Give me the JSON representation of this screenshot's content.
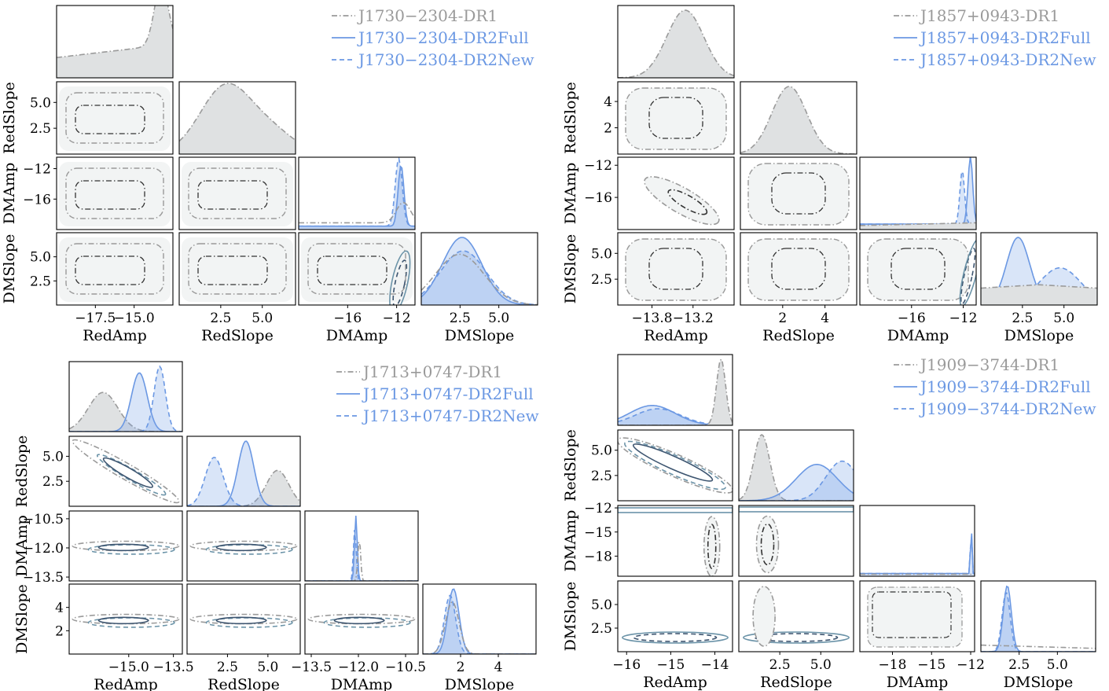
{
  "figure": {
    "panels": [
      {
        "pulsar": "J1730-2304",
        "legend": [
          "J1730−2304-DR1",
          "J1730−2304-DR2Full",
          "J1730−2304-DR2New"
        ],
        "params": [
          "RedAmp",
          "RedSlope",
          "DMAmp",
          "DMSlope"
        ],
        "row_labels": [
          "RedSlope",
          "DMAmp",
          "DMSlope"
        ],
        "ranges": [
          [
            -20,
            -12.5
          ],
          [
            0,
            7
          ],
          [
            -20,
            -10.5
          ],
          [
            0,
            7.5
          ]
        ],
        "y_ticks": [
          [
            2.5,
            5.0
          ],
          [
            -16,
            -12
          ],
          [
            2.5,
            5.0
          ]
        ],
        "y_tick_labels": [
          [
            "2.5",
            "5.0"
          ],
          [
            "−16",
            "−12"
          ],
          [
            "2.5",
            "5.0"
          ]
        ],
        "x_ticks": [
          [
            -17.5,
            -15.0
          ],
          [
            2.5,
            5.0
          ],
          [
            -16,
            -12
          ],
          [
            2.5,
            5.0
          ]
        ],
        "x_tick_labels": [
          [
            "−17.5",
            "−15.0"
          ],
          [
            "2.5",
            "5.0"
          ],
          [
            "−16",
            "−12"
          ],
          [
            "2.5",
            "5.0"
          ]
        ]
      },
      {
        "pulsar": "J1857+0943",
        "legend": [
          "J1857+0943-DR1",
          "J1857+0943-DR2Full",
          "J1857+0943-DR2New"
        ],
        "params": [
          "RedAmp",
          "RedSlope",
          "DMAmp",
          "DMSlope"
        ],
        "row_labels": [
          "RedSlope",
          "DMAmp",
          "DMSlope"
        ],
        "ranges": [
          [
            -14.3,
            -12.6
          ],
          [
            0,
            5.5
          ],
          [
            -20,
            -11
          ],
          [
            0,
            7
          ]
        ],
        "y_ticks": [
          [
            2,
            4
          ],
          [
            -16,
            -12
          ],
          [
            2.5,
            5.0
          ]
        ],
        "y_tick_labels": [
          [
            "2",
            "4"
          ],
          [
            "−16",
            "−12"
          ],
          [
            "2.5",
            "5.0"
          ]
        ],
        "x_ticks": [
          [
            -13.8,
            -13.2
          ],
          [
            2,
            4
          ],
          [
            -16,
            -12
          ],
          [
            2.5,
            5.0
          ]
        ],
        "x_tick_labels": [
          [
            "−13.8",
            "−13.2"
          ],
          [
            "2",
            "4"
          ],
          [
            "−16",
            "−12"
          ],
          [
            "2.5",
            "5.0"
          ]
        ]
      },
      {
        "pulsar": "J1713+0747",
        "legend": [
          "J1713+0747-DR1",
          "J1713+0747-DR2Full",
          "J1713+0747-DR2New"
        ],
        "params": [
          "RedAmp",
          "RedSlope",
          "DMAmp",
          "DMSlope"
        ],
        "row_labels": [
          "RedSlope",
          "DMAmp",
          "DMSlope"
        ],
        "ranges": [
          [
            -17,
            -13.2
          ],
          [
            0,
            7
          ],
          [
            -13.7,
            -10.1
          ],
          [
            0,
            6
          ]
        ],
        "y_ticks": [
          [
            2.5,
            5.0
          ],
          [
            -13.5,
            -12.0,
            -10.5
          ],
          [
            2,
            4
          ]
        ],
        "y_tick_labels": [
          [
            "2.5",
            "5.0"
          ],
          [
            "−13.5",
            "−12.0",
            "−10.5"
          ],
          [
            "2",
            "4"
          ]
        ],
        "x_ticks": [
          [
            -15.0,
            -13.5
          ],
          [
            2.5,
            5.0
          ],
          [
            -13.5,
            -12.0,
            -10.5
          ],
          [
            2,
            4
          ]
        ],
        "x_tick_labels": [
          [
            "−15.0",
            "−13.5"
          ],
          [
            "2.5",
            "5.0"
          ],
          [
            "−13.5",
            "−12.0",
            "−10.5"
          ],
          [
            "2",
            "4"
          ]
        ]
      },
      {
        "pulsar": "J1909-3744",
        "legend": [
          "J1909−3744-DR1",
          "J1909−3744-DR2Full",
          "J1909−3744-DR2New"
        ],
        "params": [
          "RedAmp",
          "RedSlope",
          "DMAmp",
          "DMSlope"
        ],
        "row_labels": [
          "RedSlope",
          "DMAmp",
          "DMSlope"
        ],
        "ranges": [
          [
            -16.2,
            -13.6
          ],
          [
            0,
            7
          ],
          [
            -20.5,
            -11.7
          ],
          [
            0,
            7.5
          ]
        ],
        "y_ticks": [
          [
            2.5,
            5.0
          ],
          [
            -18,
            -15,
            -12
          ],
          [
            2.5,
            5.0
          ]
        ],
        "y_tick_labels": [
          [
            "2.5",
            "5.0"
          ],
          [
            "−18",
            "−15",
            "−12"
          ],
          [
            "2.5",
            "5.0"
          ]
        ],
        "x_ticks": [
          [
            -16,
            -15,
            -14
          ],
          [
            2.5,
            5.0
          ],
          [
            -18,
            -15,
            -12
          ],
          [
            2.5,
            5.0
          ]
        ],
        "x_tick_labels": [
          [
            "−16",
            "−15",
            "−14"
          ],
          [
            "2.5",
            "5.0"
          ],
          [
            "−18",
            "−15",
            "−12"
          ],
          [
            "2.5",
            "5.0"
          ]
        ]
      }
    ]
  },
  "chart_data": [
    {
      "type": "corner",
      "title": "J1730-2304",
      "parameters": [
        "RedAmp",
        "RedSlope",
        "DMAmp",
        "DMSlope"
      ],
      "series": [
        {
          "name": "J1730−2304-DR1",
          "color": "#9e9e9e",
          "linestyle": "dashdot",
          "peaks": {
            "RedAmp": -13.5,
            "RedSlope": 2.5,
            "DMAmp": -11.8,
            "DMSlope": 2.4
          }
        },
        {
          "name": "J1730−2304-DR2Full",
          "color": "#6a9ae6",
          "linestyle": "solid",
          "peaks": {
            "DMAmp": -11.6,
            "DMSlope": 2.3
          }
        },
        {
          "name": "J1730−2304-DR2New",
          "color": "#6a9ae6",
          "linestyle": "dashed",
          "peaks": {
            "DMAmp": -11.9,
            "DMSlope": 2.4
          }
        }
      ]
    },
    {
      "type": "corner",
      "title": "J1857+0943",
      "parameters": [
        "RedAmp",
        "RedSlope",
        "DMAmp",
        "DMSlope"
      ],
      "series": [
        {
          "name": "J1857+0943-DR1",
          "color": "#9e9e9e",
          "linestyle": "dashdot",
          "peaks": {
            "RedAmp": -13.3,
            "RedSlope": 2.2,
            "DMAmp": -16,
            "DMSlope": 2.5
          }
        },
        {
          "name": "J1857+0943-DR2Full",
          "color": "#6a9ae6",
          "linestyle": "solid",
          "peaks": {
            "DMAmp": -12.0,
            "DMSlope": 2.5
          }
        },
        {
          "name": "J1857+0943-DR2New",
          "color": "#6a9ae6",
          "linestyle": "dashed",
          "peaks": {
            "DMAmp": -12.5,
            "DMSlope": 4.7
          }
        }
      ]
    },
    {
      "type": "corner",
      "title": "J1713+0747",
      "parameters": [
        "RedAmp",
        "RedSlope",
        "DMAmp",
        "DMSlope"
      ],
      "series": [
        {
          "name": "J1713+0747-DR1",
          "color": "#9e9e9e",
          "linestyle": "dashdot",
          "peaks": {
            "RedAmp": -15.6,
            "RedSlope": 5.6,
            "DMAmp": -11.95,
            "DMSlope": 1.6
          }
        },
        {
          "name": "J1713+0747-DR2Full",
          "color": "#6a9ae6",
          "linestyle": "solid",
          "peaks": {
            "RedAmp": -14.4,
            "RedSlope": 3.6,
            "DMAmp": -12.05,
            "DMSlope": 1.6
          }
        },
        {
          "name": "J1713+0747-DR2New",
          "color": "#6a9ae6",
          "linestyle": "dashed",
          "peaks": {
            "RedAmp": -13.8,
            "RedSlope": 1.7,
            "DMAmp": -12.1,
            "DMSlope": 1.5
          }
        }
      ]
    },
    {
      "type": "corner",
      "title": "J1909-3744",
      "parameters": [
        "RedAmp",
        "RedSlope",
        "DMAmp",
        "DMSlope"
      ],
      "series": [
        {
          "name": "J1909−3744-DR1",
          "color": "#9e9e9e",
          "linestyle": "dashdot",
          "peaks": {
            "RedAmp": -13.9,
            "RedSlope": 1.8,
            "DMAmp": -16,
            "DMSlope": 2.0
          }
        },
        {
          "name": "J1909−3744-DR2Full",
          "color": "#6a9ae6",
          "linestyle": "solid",
          "peaks": {
            "RedAmp": -15.2,
            "RedSlope": 4.7,
            "DMAmp": -12.0,
            "DMSlope": 1.5
          }
        },
        {
          "name": "J1909−3744-DR2New",
          "color": "#6a9ae6",
          "linestyle": "dashed",
          "peaks": {
            "RedAmp": -14.8,
            "RedSlope": 6.3,
            "DMAmp": -12.0,
            "DMSlope": 1.6
          }
        }
      ]
    }
  ]
}
